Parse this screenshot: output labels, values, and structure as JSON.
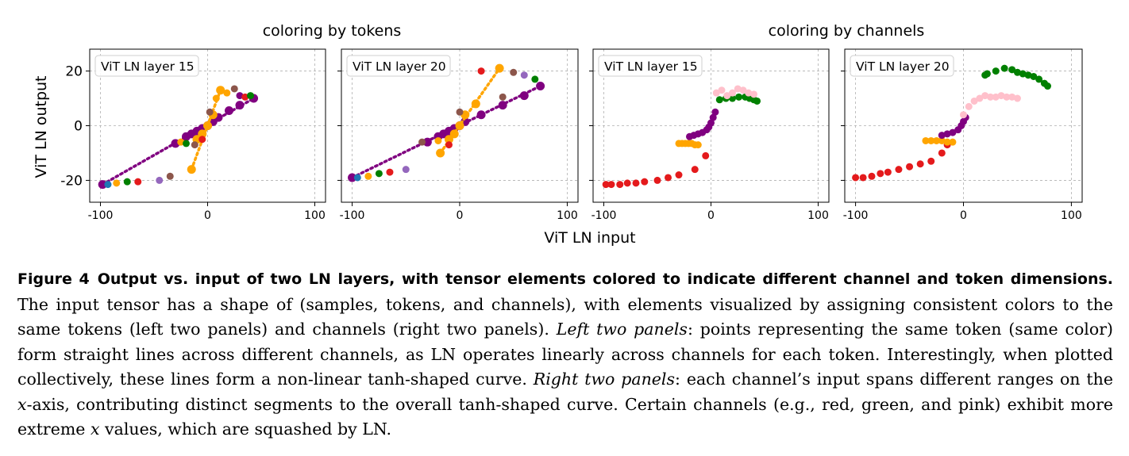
{
  "figure": {
    "group_titles": [
      "coloring by tokens",
      "coloring by channels"
    ],
    "ylabel": "ViT LN output",
    "xlabel": "ViT LN input",
    "xticks": [
      -100,
      0,
      100
    ],
    "yticks": [
      20,
      0,
      -20
    ],
    "xtick_labels": [
      "-100",
      "0",
      "100"
    ],
    "ytick_labels": [
      "20",
      "0",
      "-20"
    ]
  },
  "colors": {
    "purple": "#800080",
    "orange": "#ffa500",
    "red": "#e41a1c",
    "green": "#008000",
    "pink": "#ffc0cb",
    "brown": "#8c564b",
    "lavender": "#9467bd",
    "blue": "#1f77b4"
  },
  "chart_data": [
    {
      "type": "scatter",
      "panel_label": "ViT LN layer 15",
      "xlabel": "ViT LN input",
      "ylabel": "ViT LN output",
      "xlim": [
        -110,
        110
      ],
      "ylim": [
        -28,
        28
      ],
      "grid": true,
      "legend": "top-left label",
      "series": [
        {
          "name": "token-purple",
          "color": "purple",
          "trend_line": true,
          "x": [
            -98,
            -30,
            -20,
            -15,
            -10,
            -5,
            0,
            5,
            10,
            20,
            30,
            43
          ],
          "y": [
            -21.5,
            -6.5,
            -4,
            -3,
            -2,
            -1,
            0,
            1.5,
            3,
            5.5,
            7.5,
            10
          ]
        },
        {
          "name": "token-orange",
          "color": "orange",
          "trend_line": true,
          "x": [
            -15,
            -10,
            -5,
            0,
            5,
            12
          ],
          "y": [
            -16,
            -5,
            -3,
            0,
            4,
            13
          ]
        },
        {
          "name": "scattered-tokens",
          "color": "mixed",
          "x": [
            -93,
            -85,
            -75,
            -65,
            -45,
            -35,
            -25,
            -20,
            -12,
            -5,
            2,
            8,
            18,
            25,
            30,
            35,
            40
          ],
          "y": [
            -21.5,
            -21,
            -20.5,
            -20.5,
            -20,
            -18.5,
            -6,
            -6.5,
            -7,
            -5,
            5,
            10,
            12,
            13.5,
            11,
            10.5,
            11
          ],
          "colors": [
            "blue",
            "orange",
            "green",
            "red",
            "lavender",
            "brown",
            "orange",
            "green",
            "brown",
            "red",
            "brown",
            "orange",
            "orange",
            "brown",
            "purple",
            "red",
            "green"
          ]
        }
      ]
    },
    {
      "type": "scatter",
      "panel_label": "ViT LN layer 20",
      "xlabel": "ViT LN input",
      "ylabel": "ViT LN output",
      "xlim": [
        -110,
        110
      ],
      "ylim": [
        -28,
        28
      ],
      "grid": true,
      "legend": "top-left label",
      "series": [
        {
          "name": "token-purple",
          "color": "purple",
          "trend_line": true,
          "x": [
            -100,
            -30,
            -20,
            -15,
            -10,
            -5,
            0,
            5,
            20,
            40,
            60,
            75
          ],
          "y": [
            -19,
            -6,
            -4,
            -3,
            -2,
            -1,
            0,
            1.5,
            4,
            7.5,
            11,
            14.5
          ]
        },
        {
          "name": "token-orange",
          "color": "orange",
          "trend_line": true,
          "x": [
            -18,
            -10,
            -5,
            0,
            5,
            15,
            37
          ],
          "y": [
            -10,
            -5,
            -3,
            0,
            4,
            8,
            21
          ]
        },
        {
          "name": "scattered-tokens",
          "color": "mixed",
          "x": [
            -95,
            -85,
            -75,
            -65,
            -50,
            -35,
            -20,
            -10,
            0,
            20,
            40,
            50,
            60,
            70
          ],
          "y": [
            -19,
            -18.5,
            -17.5,
            -17,
            -16,
            -6,
            -5.5,
            -7,
            5,
            20,
            10.5,
            19.5,
            18.5,
            17
          ],
          "colors": [
            "blue",
            "orange",
            "green",
            "red",
            "lavender",
            "brown",
            "orange",
            "red",
            "brown",
            "red",
            "brown",
            "brown",
            "lavender",
            "green"
          ]
        }
      ]
    },
    {
      "type": "scatter",
      "panel_label": "ViT LN layer 15",
      "xlabel": "ViT LN input",
      "ylabel": "ViT LN output",
      "xlim": [
        -110,
        110
      ],
      "ylim": [
        -28,
        28
      ],
      "grid": true,
      "legend": "top-left label",
      "series": [
        {
          "name": "channel-red",
          "color": "red",
          "x": [
            -98,
            -93,
            -85,
            -78,
            -70,
            -62,
            -50,
            -40,
            -30,
            -15,
            -5
          ],
          "y": [
            -21.5,
            -21.5,
            -21.5,
            -21,
            -21,
            -20.5,
            -20,
            -19,
            -18,
            -16,
            -11
          ]
        },
        {
          "name": "channel-orange",
          "color": "orange",
          "x": [
            -30,
            -27,
            -24,
            -21,
            -18,
            -15,
            -12
          ],
          "y": [
            -6.5,
            -6.5,
            -6.5,
            -6.5,
            -6.5,
            -7,
            -7
          ]
        },
        {
          "name": "channel-purple",
          "color": "purple",
          "x": [
            -20,
            -16,
            -12,
            -8,
            -4,
            -2,
            0,
            2,
            4
          ],
          "y": [
            -4,
            -3.5,
            -3,
            -2.5,
            -1.5,
            -0.5,
            1,
            3,
            5
          ]
        },
        {
          "name": "channel-green",
          "color": "green",
          "x": [
            8,
            14,
            20,
            26,
            32,
            36,
            40,
            43
          ],
          "y": [
            9.5,
            10,
            10,
            10.5,
            10.5,
            10,
            9.5,
            9
          ]
        },
        {
          "name": "channel-pink",
          "color": "pink",
          "x": [
            5,
            10,
            15,
            20,
            25,
            30,
            35,
            40
          ],
          "y": [
            12,
            13,
            11,
            12,
            13.5,
            13,
            12,
            11.5
          ]
        }
      ]
    },
    {
      "type": "scatter",
      "panel_label": "ViT LN layer 20",
      "xlabel": "ViT LN input",
      "ylabel": "ViT LN output",
      "xlim": [
        -110,
        110
      ],
      "ylim": [
        -28,
        28
      ],
      "grid": true,
      "legend": "top-left label",
      "series": [
        {
          "name": "channel-red",
          "color": "red",
          "x": [
            -100,
            -93,
            -85,
            -77,
            -70,
            -60,
            -50,
            -40,
            -30,
            -20,
            -15
          ],
          "y": [
            -19,
            -19,
            -18.5,
            -17.5,
            -17,
            -16,
            -15,
            -14,
            -13,
            -10,
            -7
          ]
        },
        {
          "name": "channel-orange",
          "color": "orange",
          "x": [
            -35,
            -30,
            -25,
            -20,
            -15,
            -10
          ],
          "y": [
            -5.5,
            -5.5,
            -5.5,
            -5.5,
            -6,
            -6
          ]
        },
        {
          "name": "channel-purple",
          "color": "purple",
          "x": [
            -20,
            -15,
            -10,
            -5,
            -2,
            0,
            2
          ],
          "y": [
            -3.5,
            -3,
            -2.5,
            -1.5,
            0,
            1.5,
            3
          ]
        },
        {
          "name": "channel-green",
          "color": "green",
          "x": [
            20,
            22,
            30,
            38,
            45,
            50,
            55,
            60,
            65,
            70,
            75,
            78
          ],
          "y": [
            18.5,
            19,
            20,
            21,
            20.5,
            19.5,
            19,
            18.5,
            18,
            17,
            15.5,
            14.5
          ]
        },
        {
          "name": "channel-pink",
          "color": "pink",
          "x": [
            0,
            5,
            10,
            15,
            20,
            25,
            30,
            35,
            40,
            45,
            50
          ],
          "y": [
            4,
            7,
            9,
            10,
            11,
            10.5,
            10.5,
            11,
            10.5,
            10.5,
            10
          ]
        }
      ]
    }
  ],
  "caption": {
    "label": "Figure 4",
    "title": "Output vs. input of two LN layers, with tensor elements colored to indicate different channel and token dimensions.",
    "s1": "The input tensor has a shape of (samples, tokens, and channels), with elements visualized by assigning consistent colors to the same tokens (left two panels) and channels (right two panels).",
    "left_label": "Left two panels",
    "s2": ": points representing the same token (same color) form straight lines across different channels, as LN operates linearly across channels for each token. Interestingly, when plotted collectively, these lines form a non-linear tanh-shaped curve.",
    "right_label": "Right two panels",
    "s3": ": each channel’s input spans different ranges on the ",
    "x_var": "x",
    "s4": "-axis, contributing distinct segments to the overall tanh-shaped curve. Certain channels (e.g., red, green, and pink) exhibit more extreme ",
    "x_var2": "x",
    "s5": " values, which are squashed by LN."
  }
}
